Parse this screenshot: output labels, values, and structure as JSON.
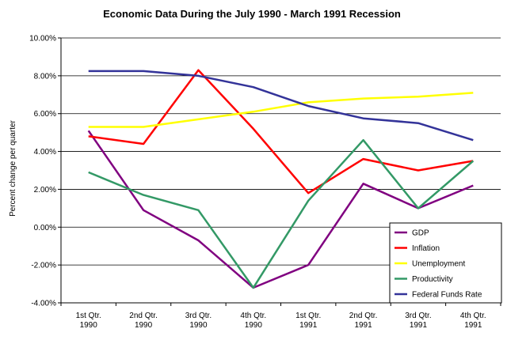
{
  "chart_data": {
    "type": "line",
    "title": "Economic Data During the July 1990 - March 1991 Recession",
    "xlabel": "",
    "ylabel": "Percent change per quarter",
    "ylim": [
      -4,
      10
    ],
    "y_ticks": [
      "10.00%",
      "8.00%",
      "6.00%",
      "4.00%",
      "2.00%",
      "0.00%",
      "-2.00%",
      "-4.00%"
    ],
    "grid": "horizontal",
    "legend_position": "bottom-right",
    "categories": [
      [
        "1st Qtr.",
        "1990"
      ],
      [
        "2nd Qtr.",
        "1990"
      ],
      [
        "3rd Qtr.",
        "1990"
      ],
      [
        "4th Qtr.",
        "1990"
      ],
      [
        "1st Qtr.",
        "1991"
      ],
      [
        "2nd Qtr.",
        "1991"
      ],
      [
        "3rd Qtr.",
        "1991"
      ],
      [
        "4th Qtr.",
        "1991"
      ]
    ],
    "series": [
      {
        "name": "GDP",
        "color": "#800080",
        "values": [
          5.1,
          0.9,
          -0.7,
          -3.2,
          -2.0,
          2.3,
          1.0,
          2.2
        ]
      },
      {
        "name": "Inflation",
        "color": "#ff0000",
        "values": [
          4.8,
          4.4,
          8.3,
          5.2,
          1.8,
          3.6,
          3.0,
          3.5
        ]
      },
      {
        "name": "Unemployment",
        "color": "#ffff00",
        "values": [
          5.3,
          5.3,
          5.7,
          6.1,
          6.6,
          6.8,
          6.9,
          7.1
        ]
      },
      {
        "name": "Productivity",
        "color": "#339966",
        "values": [
          2.9,
          1.7,
          0.9,
          -3.2,
          1.4,
          4.6,
          1.0,
          3.5
        ]
      },
      {
        "name": "Federal Funds Rate",
        "color": "#333399",
        "values": [
          8.25,
          8.25,
          8.0,
          7.4,
          6.4,
          5.75,
          5.5,
          4.6
        ]
      }
    ]
  }
}
